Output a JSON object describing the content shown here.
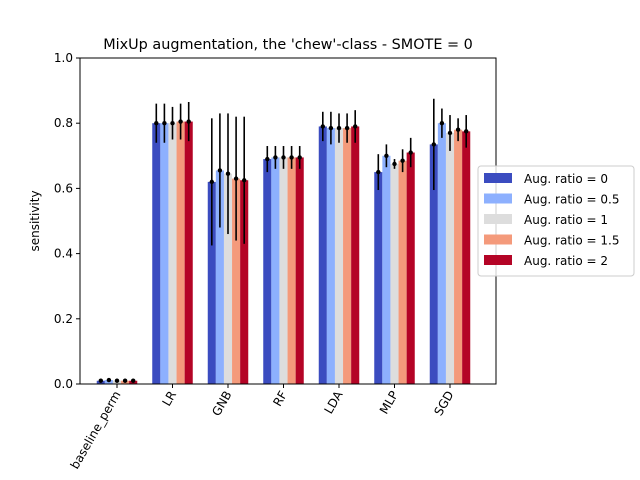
{
  "chart_data": {
    "type": "bar",
    "title": "MixUp augmentation, the 'chew'-class - SMOTE = 0",
    "xlabel": "",
    "ylabel": "sensitivity",
    "ylim": [
      0.0,
      1.0
    ],
    "yticks": [
      "0.0",
      "0.2",
      "0.4",
      "0.6",
      "0.8",
      "1.0"
    ],
    "categories": [
      "baseline_perm",
      "LR",
      "GNB",
      "RF",
      "LDA",
      "MLP",
      "SGD"
    ],
    "legend_position": "center-right outside",
    "grid": false,
    "series": [
      {
        "name": "Aug. ratio = 0",
        "color": "#3b4cc0",
        "values": [
          0.01,
          0.8,
          0.62,
          0.69,
          0.79,
          0.65,
          0.735
        ],
        "errors": [
          0.005,
          0.06,
          0.195,
          0.04,
          0.045,
          0.055,
          0.14
        ]
      },
      {
        "name": "Aug. ratio = 0.5",
        "color": "#8db0fe",
        "values": [
          0.012,
          0.8,
          0.655,
          0.695,
          0.785,
          0.7,
          0.8
        ],
        "errors": [
          0.005,
          0.06,
          0.175,
          0.035,
          0.05,
          0.035,
          0.045
        ]
      },
      {
        "name": "Aug. ratio = 1",
        "color": "#dddddd",
        "values": [
          0.01,
          0.8,
          0.645,
          0.695,
          0.785,
          0.675,
          0.77
        ],
        "errors": [
          0.005,
          0.05,
          0.185,
          0.035,
          0.045,
          0.015,
          0.055
        ]
      },
      {
        "name": "Aug. ratio = 1.5",
        "color": "#f49a7b",
        "values": [
          0.01,
          0.805,
          0.63,
          0.695,
          0.785,
          0.685,
          0.78
        ],
        "errors": [
          0.005,
          0.055,
          0.19,
          0.035,
          0.045,
          0.035,
          0.035
        ]
      },
      {
        "name": "Aug. ratio = 2",
        "color": "#b40426",
        "values": [
          0.01,
          0.805,
          0.625,
          0.695,
          0.79,
          0.71,
          0.775
        ],
        "errors": [
          0.005,
          0.06,
          0.195,
          0.035,
          0.05,
          0.045,
          0.05
        ]
      }
    ]
  }
}
